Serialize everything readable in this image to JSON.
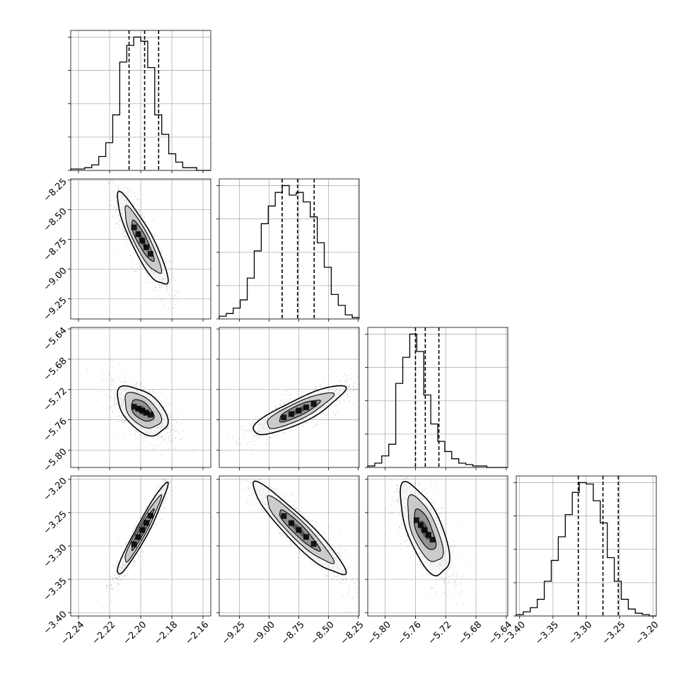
{
  "chart_data": {
    "type": "corner",
    "grid": true,
    "parameters": [
      {
        "range": [
          -2.245,
          -2.155
        ],
        "ticks": [
          -2.24,
          -2.22,
          -2.2,
          -2.18,
          -2.16
        ],
        "tick_labels": [
          "−2.24",
          "−2.22",
          "−2.20",
          "−2.18",
          "−2.16"
        ],
        "quantiles": [
          -2.2075,
          -2.1975,
          -2.1885
        ],
        "hist_edges_start": -2.245,
        "hist_bin_width": 0.0045,
        "hist_counts": [
          1,
          1,
          2,
          4,
          10,
          20,
          40,
          78,
          90,
          96,
          93,
          74,
          40,
          26,
          12,
          6,
          2,
          2,
          0,
          0
        ]
      },
      {
        "range": [
          -9.42,
          -8.24
        ],
        "ticks": [
          -9.25,
          -9.0,
          -8.75,
          -8.5,
          -8.25
        ],
        "tick_labels": [
          "−9.25",
          "−9.00",
          "−8.75",
          "−8.50",
          "−8.25"
        ],
        "quantiles": [
          -8.89,
          -8.76,
          -8.62
        ],
        "hist_edges_start": -9.42,
        "hist_bin_width": 0.059,
        "hist_counts": [
          2,
          4,
          8,
          14,
          30,
          50,
          70,
          83,
          93,
          98,
          91,
          93,
          86,
          75,
          56,
          38,
          18,
          10,
          3,
          1
        ]
      },
      {
        "range": [
          -5.823,
          -5.638
        ],
        "ticks": [
          -5.8,
          -5.76,
          -5.72,
          -5.68,
          -5.64
        ],
        "tick_labels": [
          "−5.80",
          "−5.76",
          "−5.72",
          "−5.68",
          "−5.64"
        ],
        "quantiles": [
          -5.76,
          -5.747,
          -5.729
        ],
        "hist_edges_start": -5.823,
        "hist_bin_width": 0.00925,
        "hist_counts": [
          1,
          3,
          8,
          16,
          58,
          76,
          92,
          80,
          50,
          30,
          18,
          11,
          6,
          3,
          2,
          1,
          1,
          0,
          0,
          0
        ]
      },
      {
        "range": [
          -3.405,
          -3.195
        ],
        "ticks": [
          -3.4,
          -3.35,
          -3.3,
          -3.25,
          -3.2
        ],
        "tick_labels": [
          "−3.40",
          "−3.35",
          "−3.30",
          "−3.25",
          "−3.20"
        ],
        "quantiles": [
          -3.312,
          -3.275,
          -3.252
        ],
        "hist_edges_start": -3.405,
        "hist_bin_width": 0.0105,
        "hist_counts": [
          1,
          3,
          6,
          12,
          25,
          40,
          57,
          73,
          89,
          96,
          95,
          83,
          67,
          42,
          25,
          12,
          5,
          2,
          1,
          0
        ]
      }
    ],
    "pairs": [
      {
        "x": 0,
        "y": 1,
        "center": [
          -2.199,
          -8.76
        ],
        "sigma": [
          0.0075,
          0.18
        ],
        "rho": -0.88
      },
      {
        "x": 0,
        "y": 2,
        "center": [
          -2.199,
          -5.748
        ],
        "sigma": [
          0.0075,
          0.015
        ],
        "rho": -0.5
      },
      {
        "x": 1,
        "y": 2,
        "center": [
          -8.75,
          -5.748
        ],
        "sigma": [
          0.18,
          0.015
        ],
        "rho": 0.85
      },
      {
        "x": 0,
        "y": 3,
        "center": [
          -2.199,
          -3.276
        ],
        "sigma": [
          0.0075,
          0.032
        ],
        "rho": 0.96
      },
      {
        "x": 1,
        "y": 3,
        "center": [
          -8.75,
          -3.276
        ],
        "sigma": [
          0.18,
          0.032
        ],
        "rho": -0.93
      },
      {
        "x": 2,
        "y": 3,
        "center": [
          -5.748,
          -3.276
        ],
        "sigma": [
          0.015,
          0.032
        ],
        "rho": -0.65
      }
    ]
  }
}
